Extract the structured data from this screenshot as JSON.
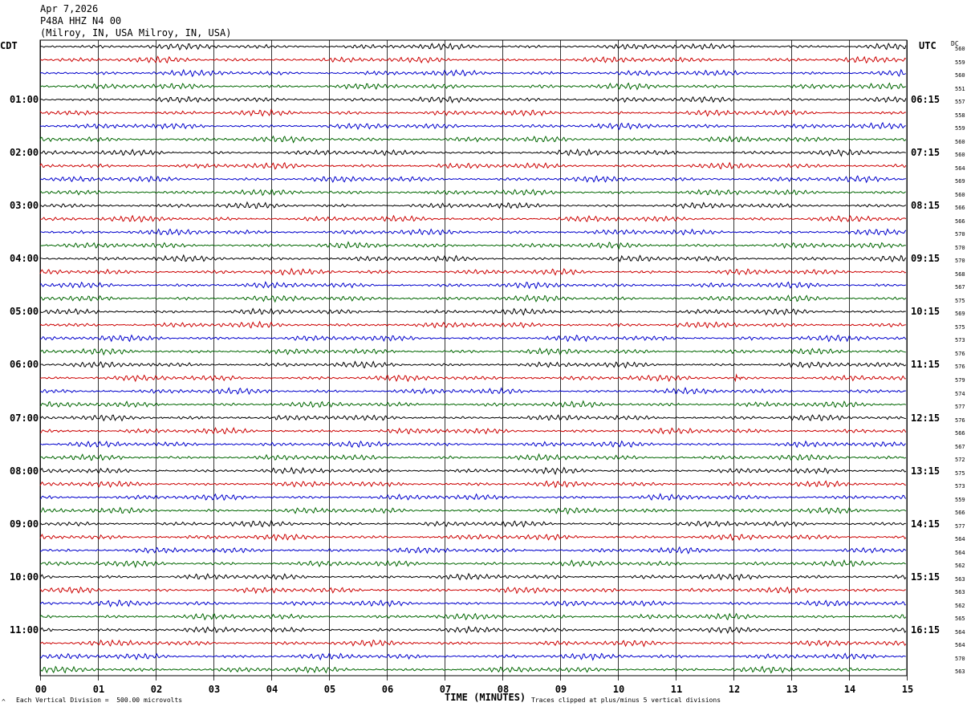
{
  "header": {
    "date": "Apr 7,2026",
    "station": "P48A HHZ N4 00",
    "location": "(Milroy, IN, USA Milroy, IN, USA)"
  },
  "left_timezone": "CDT",
  "right_timezone": "UTC",
  "dc_label": "DC",
  "footer": {
    "vertical_division": "Each Vertical Division =  500.00 microvolts",
    "clip_note": "Traces clipped at plus/minus 5 vertical divisions",
    "corner_mark": "^"
  },
  "colors": {
    "trace": [
      "#000000",
      "#cc0000",
      "#0000cc",
      "#006600"
    ],
    "grid": "#000000"
  },
  "chart_data": {
    "type": "line",
    "title": "",
    "xlabel": "TIME (MINUTES)",
    "ylabel": "",
    "xlim": [
      0,
      15
    ],
    "x_ticks": [
      "00",
      "01",
      "02",
      "03",
      "04",
      "05",
      "06",
      "07",
      "08",
      "09",
      "10",
      "11",
      "12",
      "13",
      "14",
      "15"
    ],
    "trace_count": 48,
    "left_hour_labels": [
      "01:00",
      "02:00",
      "03:00",
      "04:00",
      "05:00",
      "06:00",
      "07:00",
      "08:00",
      "09:00",
      "10:00",
      "11:00"
    ],
    "right_hour_labels": [
      "06:15",
      "07:15",
      "08:15",
      "09:15",
      "10:15",
      "11:15",
      "12:15",
      "13:15",
      "14:15",
      "15:15",
      "16:15"
    ],
    "dc_offsets": [
      560,
      559,
      560,
      551,
      557,
      558,
      559,
      560,
      560,
      564,
      569,
      560,
      566,
      566,
      570,
      570,
      570,
      568,
      567,
      575,
      569,
      575,
      573,
      576,
      576,
      579,
      574,
      577,
      576,
      566,
      567,
      572,
      575,
      573,
      559,
      566,
      577,
      564,
      564,
      562,
      563,
      563,
      562,
      565,
      564,
      564,
      570,
      563
    ],
    "events": [
      {
        "trace_index": 25,
        "minute": 12.05,
        "label": ""
      }
    ]
  }
}
